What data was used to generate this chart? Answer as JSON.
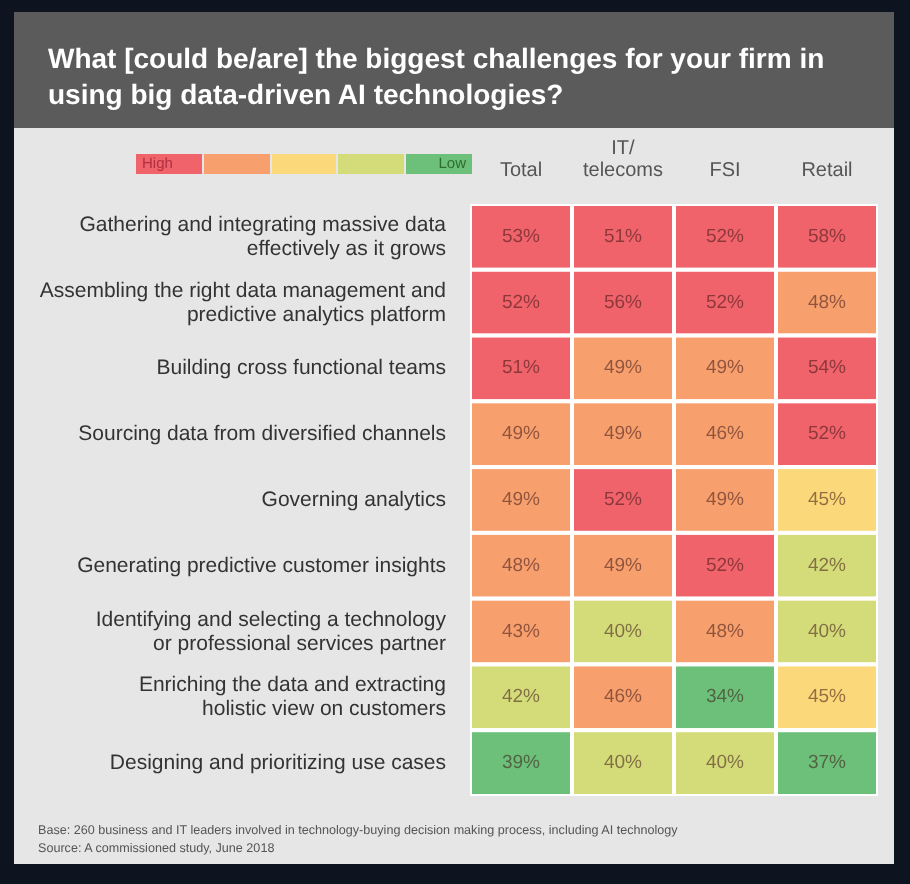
{
  "chart_data": {
    "type": "heatmap",
    "title": "What [could be/are] the biggest challenges for your firm in using big data-driven AI technologies?",
    "categories": [
      "Total",
      "IT/ telecoms",
      "FSI",
      "Retail"
    ],
    "y_categories": [
      "Gathering and integrating massive data effectively as it grows",
      "Assembling the right data management and predictive analytics platform",
      "Building cross functional teams",
      "Sourcing data from diversified channels",
      "Governing analytics",
      "Generating predictive customer insights",
      "Identifying and selecting a technology or professional services partner",
      "Enriching the data and extracting holistic view on customers",
      "Designing and prioritizing use cases"
    ],
    "cells": [
      [
        53,
        51,
        52,
        58
      ],
      [
        52,
        56,
        52,
        48
      ],
      [
        51,
        49,
        49,
        54
      ],
      [
        49,
        49,
        46,
        52
      ],
      [
        49,
        52,
        49,
        45
      ],
      [
        48,
        49,
        52,
        42
      ],
      [
        43,
        40,
        48,
        40
      ],
      [
        42,
        46,
        34,
        45
      ],
      [
        39,
        40,
        40,
        37
      ]
    ],
    "cell_labels": [
      [
        "53%",
        "51%",
        "52%",
        "58%"
      ],
      [
        "52%",
        "56%",
        "52%",
        "48%"
      ],
      [
        "51%",
        "49%",
        "49%",
        "54%"
      ],
      [
        "49%",
        "49%",
        "46%",
        "52%"
      ],
      [
        "49%",
        "52%",
        "49%",
        "45%"
      ],
      [
        "48%",
        "49%",
        "52%",
        "42%"
      ],
      [
        "43%",
        "40%",
        "48%",
        "40%"
      ],
      [
        "42%",
        "46%",
        "34%",
        "45%"
      ],
      [
        "39%",
        "40%",
        "40%",
        "37%"
      ]
    ],
    "colors": [
      [
        "#f0636b",
        "#f0636b",
        "#f0636b",
        "#f0636b"
      ],
      [
        "#f0636b",
        "#f0636b",
        "#f0636b",
        "#f7a06e"
      ],
      [
        "#f0636b",
        "#f7a06e",
        "#f7a06e",
        "#f0636b"
      ],
      [
        "#f7a06e",
        "#f7a06e",
        "#f7a06e",
        "#f0636b"
      ],
      [
        "#f7a06e",
        "#f0636b",
        "#f7a06e",
        "#fbd97a"
      ],
      [
        "#f7a06e",
        "#f7a06e",
        "#f0636b",
        "#d4dc7a"
      ],
      [
        "#f7a06e",
        "#d4dc7a",
        "#f7a06e",
        "#d4dc7a"
      ],
      [
        "#d4dc7a",
        "#f7a06e",
        "#6cc07a",
        "#fbd97a"
      ],
      [
        "#6cc07a",
        "#d4dc7a",
        "#d4dc7a",
        "#6cc07a"
      ]
    ],
    "annotations": [
      "High",
      "Low",
      "Base: 260 business and IT leaders involved in technology-buying decision making process, including AI technology",
      "Source: A commissioned study, June 2018"
    ]
  }
}
